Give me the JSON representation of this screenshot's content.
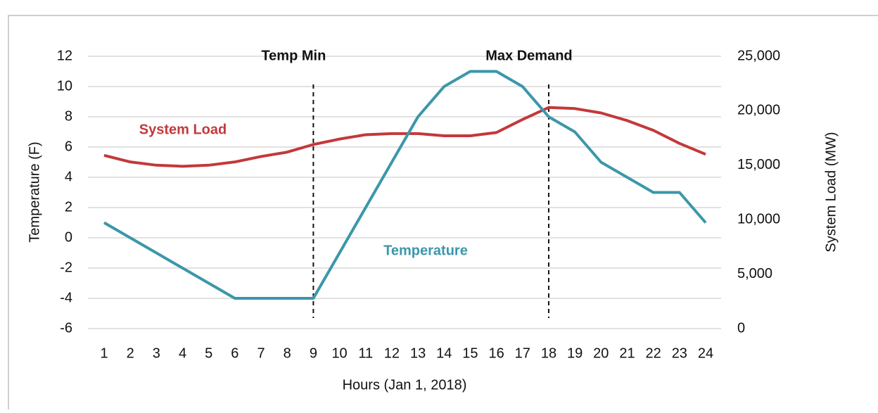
{
  "chart_data": {
    "type": "line",
    "xlabel": "Hours (Jan 1, 2018)",
    "ylabel": "Temperature (F)",
    "y2label": "System Load (MW)",
    "categories": [
      "1",
      "2",
      "3",
      "4",
      "5",
      "6",
      "7",
      "8",
      "9",
      "10",
      "11",
      "12",
      "13",
      "14",
      "15",
      "16",
      "17",
      "18",
      "19",
      "20",
      "21",
      "22",
      "23",
      "24"
    ],
    "series": [
      {
        "name": "System Load",
        "color": "#c3383a",
        "axis": "y2",
        "values": [
          15900,
          15300,
          15000,
          14900,
          15000,
          15300,
          15800,
          16200,
          16900,
          17400,
          17800,
          17900,
          17900,
          17700,
          17700,
          18000,
          19200,
          20300,
          20200,
          19800,
          19100,
          18200,
          17000,
          16000
        ]
      },
      {
        "name": "Temperature",
        "color": "#3b97a9",
        "values": [
          1,
          0,
          -1,
          -2,
          -3,
          -4,
          -4,
          -4,
          -4,
          -1,
          2,
          5,
          8,
          10,
          11,
          11,
          10,
          8,
          7,
          5,
          4,
          3,
          3,
          1
        ]
      }
    ],
    "ylim": [
      -6,
      12
    ],
    "yticks": [
      -6,
      -4,
      -2,
      0,
      2,
      4,
      6,
      8,
      10,
      12
    ],
    "y2lim": [
      0,
      25000
    ],
    "y2ticks": [
      0,
      {
        "value": 5000,
        "label": "5,000"
      },
      {
        "value": 10000,
        "label": "10,000"
      },
      {
        "value": 15000,
        "label": "15,000"
      },
      {
        "value": 20000,
        "label": "20,000"
      },
      {
        "value": 25000,
        "label": "25,000"
      }
    ],
    "grid": true,
    "annotations": [
      {
        "text": "Temp Min",
        "x": "9"
      },
      {
        "text": "Max Demand",
        "x": "18"
      }
    ]
  }
}
